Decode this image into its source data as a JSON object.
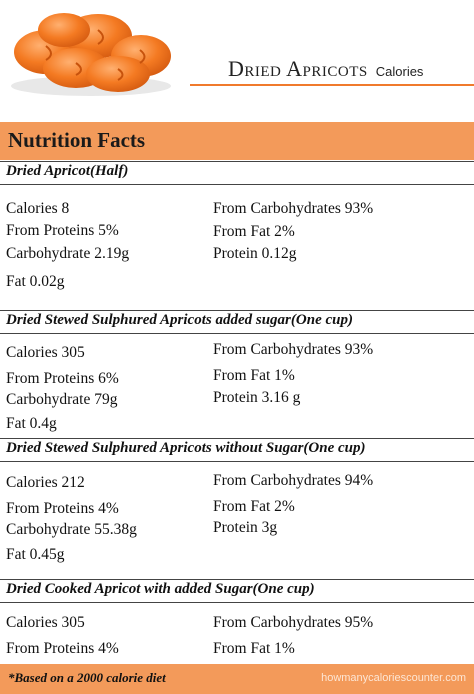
{
  "header": {
    "title_main": "Dried Apricots",
    "title_sub": "Calories"
  },
  "nutrition_title": "Nutrition Facts",
  "sections": [
    {
      "title": "Dried Apricot(Half)",
      "left": [
        "Calories 8",
        "From Proteins 5%",
        "Carbohydrate 2.19g",
        "Fat 0.02g"
      ],
      "right": [
        "From Carbohydrates 93%",
        "From Fat 2%",
        "Protein 0.12g"
      ]
    },
    {
      "title": "Dried Stewed Sulphured Apricots added sugar(One cup)",
      "left": [
        "Calories 305",
        "From Proteins 6%",
        "Carbohydrate 79g",
        "Fat 0.4g"
      ],
      "right": [
        "From Carbohydrates 93%",
        "From Fat 1%",
        "Protein 3.16 g"
      ]
    },
    {
      "title": "Dried Stewed Sulphured Apricots without Sugar(One cup)",
      "left": [
        "Calories 212",
        "From Proteins 4%",
        "Carbohydrate 55.38g",
        "Fat 0.45g"
      ],
      "right": [
        "From Carbohydrates 94%",
        "From Fat 2%",
        "Protein 3g"
      ]
    },
    {
      "title": "Dried Cooked Apricot with added Sugar(One cup)",
      "left": [
        "Calories 305",
        "From Proteins 4%"
      ],
      "right": [
        "From Carbohydrates 95%",
        "From Fat 1%"
      ]
    }
  ],
  "footer": {
    "note": "*Based on a 2000 calorie diet",
    "site": "howmanycaloriescounter.com"
  },
  "colors": {
    "accent": "#f39a5a",
    "title_rule": "#f07a2c"
  }
}
